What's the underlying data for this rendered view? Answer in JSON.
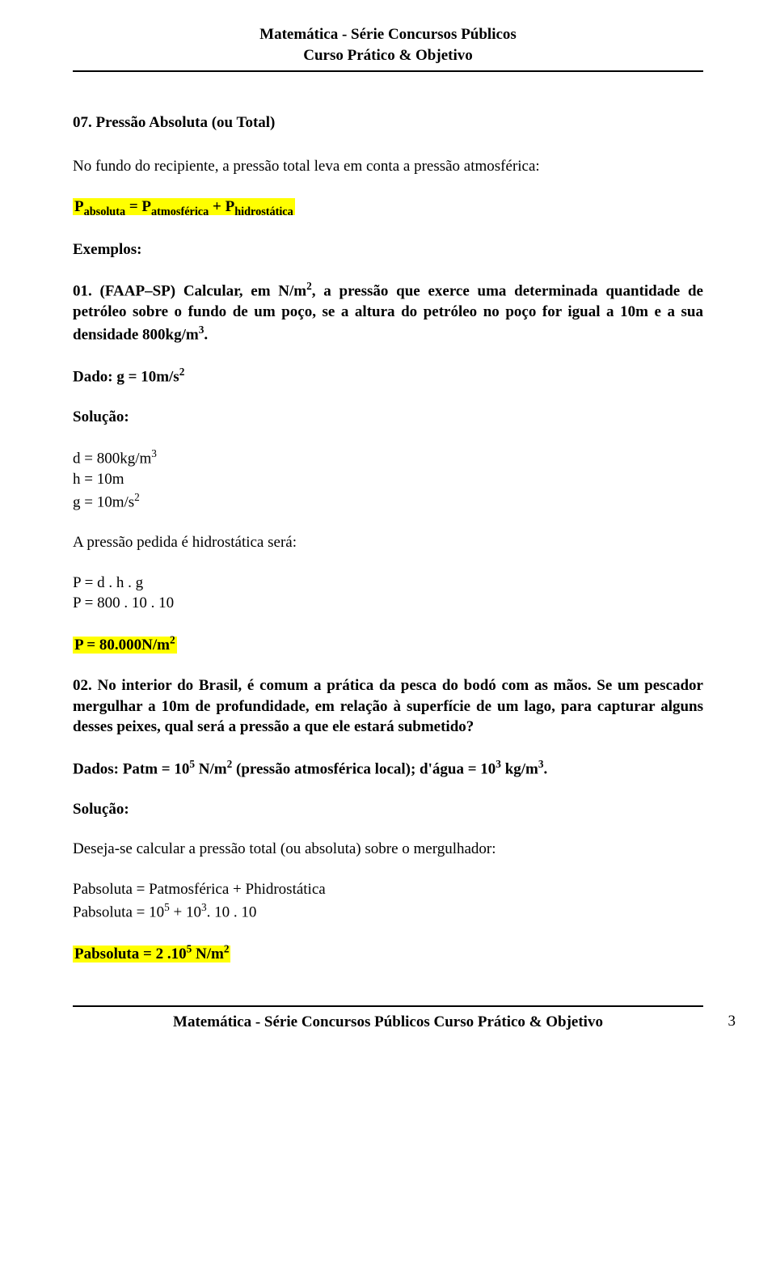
{
  "header": {
    "line1": "Matemática - Série Concursos Públicos",
    "line2": "Curso Prático & Objetivo"
  },
  "section": {
    "heading": "07. Pressão Absoluta (ou Total)"
  },
  "intro": {
    "text": "No fundo do recipiente, a pressão total leva em conta a pressão atmosférica:"
  },
  "formula_main": {
    "p_abs": "P",
    "abs_sub": "absoluta",
    "eq": " = P",
    "atm_sub": "atmosférica",
    "plus": " + P",
    "hid_sub": "hidrostática"
  },
  "examples_label": "Exemplos:",
  "ex01": {
    "num": "01. (FAAP–SP) Calcular, em N/m",
    "sup2_a": "2",
    "part2": ", a pressão que exerce uma determinada quantidade de petróleo sobre o fundo de um poço, se a altura do petróleo no poço for igual a 10m e a sua densidade 800kg/m",
    "sup3_a": "3",
    "part3": ".",
    "dado_pre": "Dado: g = 10m/s",
    "dado_sup": "2"
  },
  "solucao_label": "Solução:",
  "calc01": {
    "d_pre": "d = 800kg/m",
    "d_sup": "3",
    "h": "h = 10m",
    "g_pre": "g = 10m/s",
    "g_sup": "2"
  },
  "press_line": "A pressão pedida é hidrostática será:",
  "calc01b": {
    "l1": "P = d . h . g",
    "l2": "P = 800 . 10 . 10"
  },
  "result01": {
    "pre": "P = 80.000N/m",
    "sup": "2"
  },
  "ex02": {
    "num": "02. No interior do Brasil, é comum a prática da pesca do bodó com as mãos. Se um pescador mergulhar a 10m de profundidade, em relação à superfície de um lago, para capturar alguns desses peixes, qual será a pressão a que ele estará submetido?",
    "dados_pre": "Dados: Patm = 10",
    "dados_sup5": "5",
    "dados_mid": " N/m",
    "dados_sup2": "2",
    "dados_mid2": " (pressão atmosférica local); d'água = 10",
    "dados_sup3": "3",
    "dados_mid3": " kg/m",
    "dados_sup3b": "3",
    "dados_end": "."
  },
  "desc02": "Deseja-se calcular a pressão total (ou absoluta) sobre o mergulhador:",
  "calc02": {
    "l1": "Pabsoluta = Patmosférica + Phidrostática",
    "l2_pre": "Pabsoluta = 10",
    "l2_sup5": "5",
    "l2_mid": " + 10",
    "l2_sup3": "3",
    "l2_end": ". 10 . 10"
  },
  "result02": {
    "pre": "Pabsoluta = 2 .10",
    "sup5": "5",
    "mid": " N/m",
    "sup2": "2"
  },
  "footer": {
    "line1": "Matemática - Série Concursos Públicos",
    "line2": "Curso Prático & Objetivo",
    "page": "3"
  }
}
